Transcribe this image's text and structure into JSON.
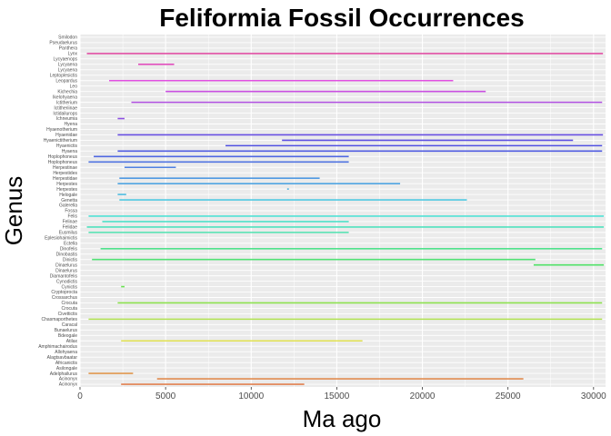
{
  "chart_data": {
    "type": "range-bar",
    "title": "Feliformia Fossil Occurrences",
    "xlabel": "Ma ago",
    "ylabel": "Genus",
    "xlim": [
      0,
      30700
    ],
    "xticks": [
      0,
      5000,
      10000,
      15000,
      20000,
      25000,
      30000
    ],
    "grid": true,
    "legend": "none",
    "panel_background": "#ebebeb",
    "grid_color": "#ffffff",
    "categories": [
      "Smilodon",
      "Pseudaelurus",
      "Panthera",
      "Lynx",
      "Lycyaenops",
      "Lycyaena",
      "Lycyaena",
      "Leptoplesictis",
      "Leopardus",
      "Leo",
      "Kichechia",
      "Ikelohyaena",
      "Ictitherium",
      "Ictitheriinae",
      "Ictidailurops",
      "Ichneumia",
      "Hyena",
      "Hyaenotherium",
      "Hyaenidae",
      "Hyaenictitherium",
      "Hyaenictis",
      "Hyaena",
      "Hoplophoneus",
      "Hoplophoneus",
      "Herpestinae",
      "Herpestides",
      "Herpestidae",
      "Herpestes",
      "Herpestes",
      "Helogale",
      "Genetta",
      "Galerella",
      "Fossa",
      "Felis",
      "Felinae",
      "Felidae",
      "Eusmilus",
      "Eplesiohaimictis",
      "Ectella",
      "Dinofelis",
      "Dinobastis",
      "Dinictis",
      "Dinaelurus",
      "Dinaelurus",
      "Diamantofelis",
      "Cynodictis",
      "Cynictis",
      "Cryptoprocta",
      "Crossarchus",
      "Crocuta",
      "Crocuta",
      "Civettictis",
      "Chasmaporthetes",
      "Caracal",
      "Bunaelurus",
      "Bdeogale",
      "Atilax",
      "Amphimachairodus",
      "Allohyaena",
      "Alagtsavbaatar",
      "Africanictis",
      "Asilongale",
      "Adelphailurus",
      "Acinonyx",
      "Acinonyx"
    ],
    "series": [
      {
        "category_index": 3,
        "min": 400,
        "max": 30550
      },
      {
        "category_index": 5,
        "min": 3400,
        "max": 5500
      },
      {
        "category_index": 8,
        "min": 1700,
        "max": 21800
      },
      {
        "category_index": 10,
        "min": 5000,
        "max": 23700
      },
      {
        "category_index": 12,
        "min": 3000,
        "max": 30500
      },
      {
        "category_index": 15,
        "min": 2200,
        "max": 2600
      },
      {
        "category_index": 18,
        "min": 2200,
        "max": 30550
      },
      {
        "category_index": 19,
        "min": 11800,
        "max": 28800
      },
      {
        "category_index": 20,
        "min": 8500,
        "max": 30500
      },
      {
        "category_index": 21,
        "min": 2200,
        "max": 30500
      },
      {
        "category_index": 22,
        "min": 800,
        "max": 15700
      },
      {
        "category_index": 23,
        "min": 500,
        "max": 15700
      },
      {
        "category_index": 24,
        "min": 2600,
        "max": 5600
      },
      {
        "category_index": 26,
        "min": 2300,
        "max": 14000
      },
      {
        "category_index": 27,
        "min": 2200,
        "max": 18700
      },
      {
        "category_index": 28,
        "min": 12100,
        "max": 12200
      },
      {
        "category_index": 29,
        "min": 2200,
        "max": 2700
      },
      {
        "category_index": 30,
        "min": 2300,
        "max": 22600
      },
      {
        "category_index": 33,
        "min": 500,
        "max": 30600
      },
      {
        "category_index": 34,
        "min": 1300,
        "max": 15700
      },
      {
        "category_index": 35,
        "min": 400,
        "max": 30600
      },
      {
        "category_index": 36,
        "min": 500,
        "max": 15700
      },
      {
        "category_index": 39,
        "min": 1200,
        "max": 30500
      },
      {
        "category_index": 41,
        "min": 700,
        "max": 26600
      },
      {
        "category_index": 42,
        "min": 26500,
        "max": 30600
      },
      {
        "category_index": 46,
        "min": 2400,
        "max": 2600
      },
      {
        "category_index": 49,
        "min": 2200,
        "max": 30500
      },
      {
        "category_index": 52,
        "min": 500,
        "max": 30500
      },
      {
        "category_index": 56,
        "min": 2400,
        "max": 16500
      },
      {
        "category_index": 62,
        "min": 500,
        "max": 3100
      },
      {
        "category_index": 63,
        "min": 4500,
        "max": 25900
      },
      {
        "category_index": 64,
        "min": 2400,
        "max": 13100
      }
    ]
  }
}
